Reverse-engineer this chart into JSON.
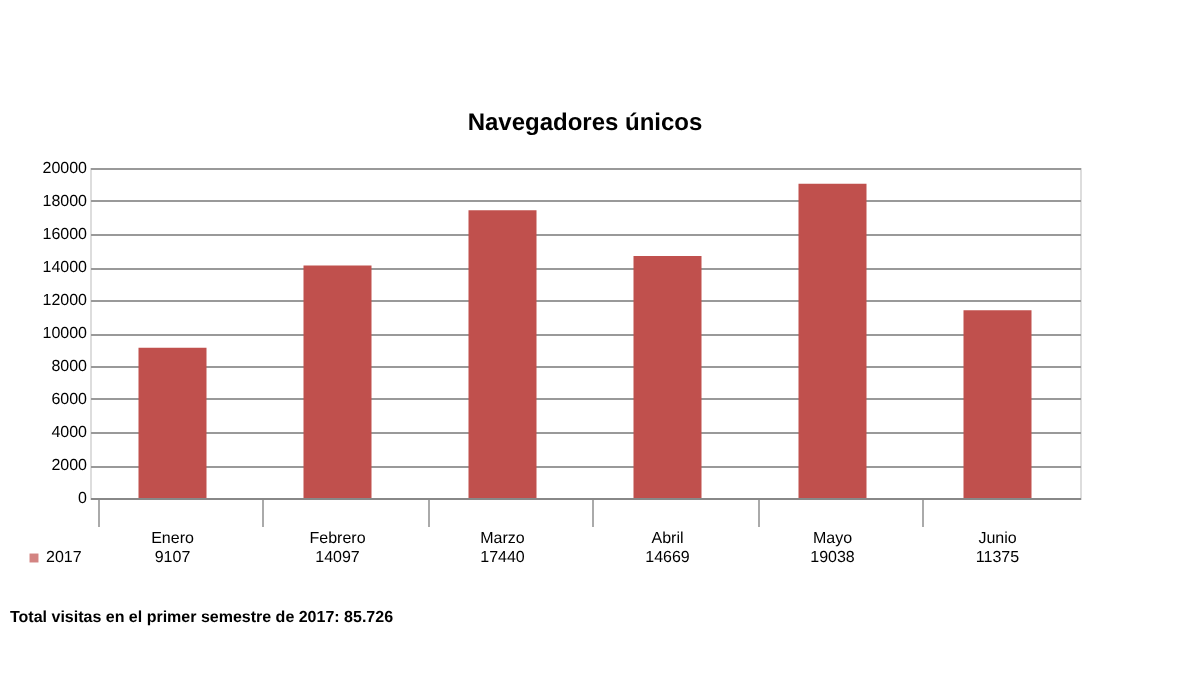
{
  "chart_data": {
    "type": "bar",
    "title": "Navegadores únicos",
    "categories": [
      "Enero",
      "Febrero",
      "Marzo",
      "Abril",
      "Mayo",
      "Junio"
    ],
    "series": [
      {
        "name": "2017",
        "color": "#c0504d",
        "values": [
          9107,
          14097,
          17440,
          14669,
          19038,
          11375
        ]
      }
    ],
    "ylim": [
      0,
      20000
    ],
    "yticks": [
      0,
      2000,
      4000,
      6000,
      8000,
      10000,
      12000,
      14000,
      16000,
      18000,
      20000
    ],
    "grid": "y",
    "data_labels": true,
    "annotations": [
      "Total visitas en el primer semestre de 2017: 85.726"
    ]
  }
}
